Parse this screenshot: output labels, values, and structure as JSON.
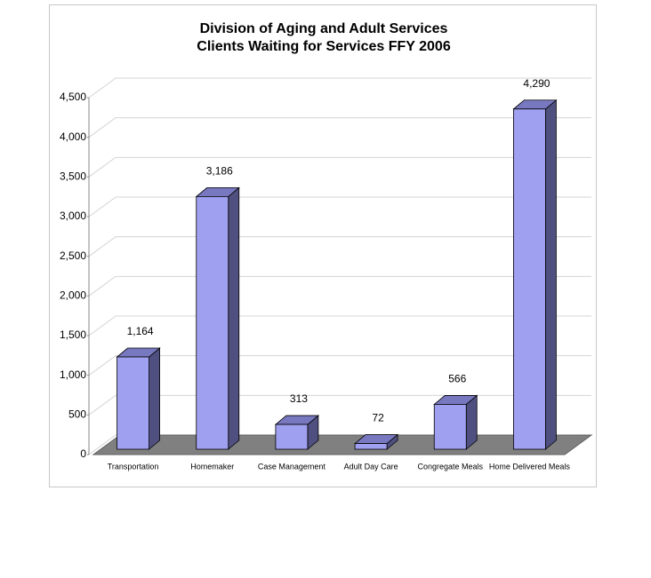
{
  "chart_data": {
    "type": "bar3d",
    "title": [
      "Division of Aging and Adult Services",
      "Clients Waiting for Services FFY 2006"
    ],
    "categories": [
      "Transportation",
      "Homemaker",
      "Case Management",
      "Adult Day Care",
      "Congregate Meals",
      "Home Delivered Meals"
    ],
    "values": [
      1164,
      3186,
      313,
      72,
      566,
      4290
    ],
    "value_labels": [
      "1,164",
      "3,186",
      "313",
      "72",
      "566",
      "4,290"
    ],
    "color": "#a0a0f0",
    "ylim": [
      0,
      4500
    ],
    "yticks": [
      0,
      500,
      {
        "value": 1000,
        "label": "1,000"
      },
      {
        "value": 1500,
        "label": "1,500"
      },
      {
        "value": 2000,
        "label": "2,000"
      },
      {
        "value": 2500,
        "label": "2,500"
      },
      {
        "value": 3000,
        "label": "3,000"
      },
      {
        "value": 3500,
        "label": "3,500"
      },
      {
        "value": 4000,
        "label": "4,000"
      },
      {
        "value": 4500,
        "label": "4,500"
      }
    ],
    "grid": true
  }
}
